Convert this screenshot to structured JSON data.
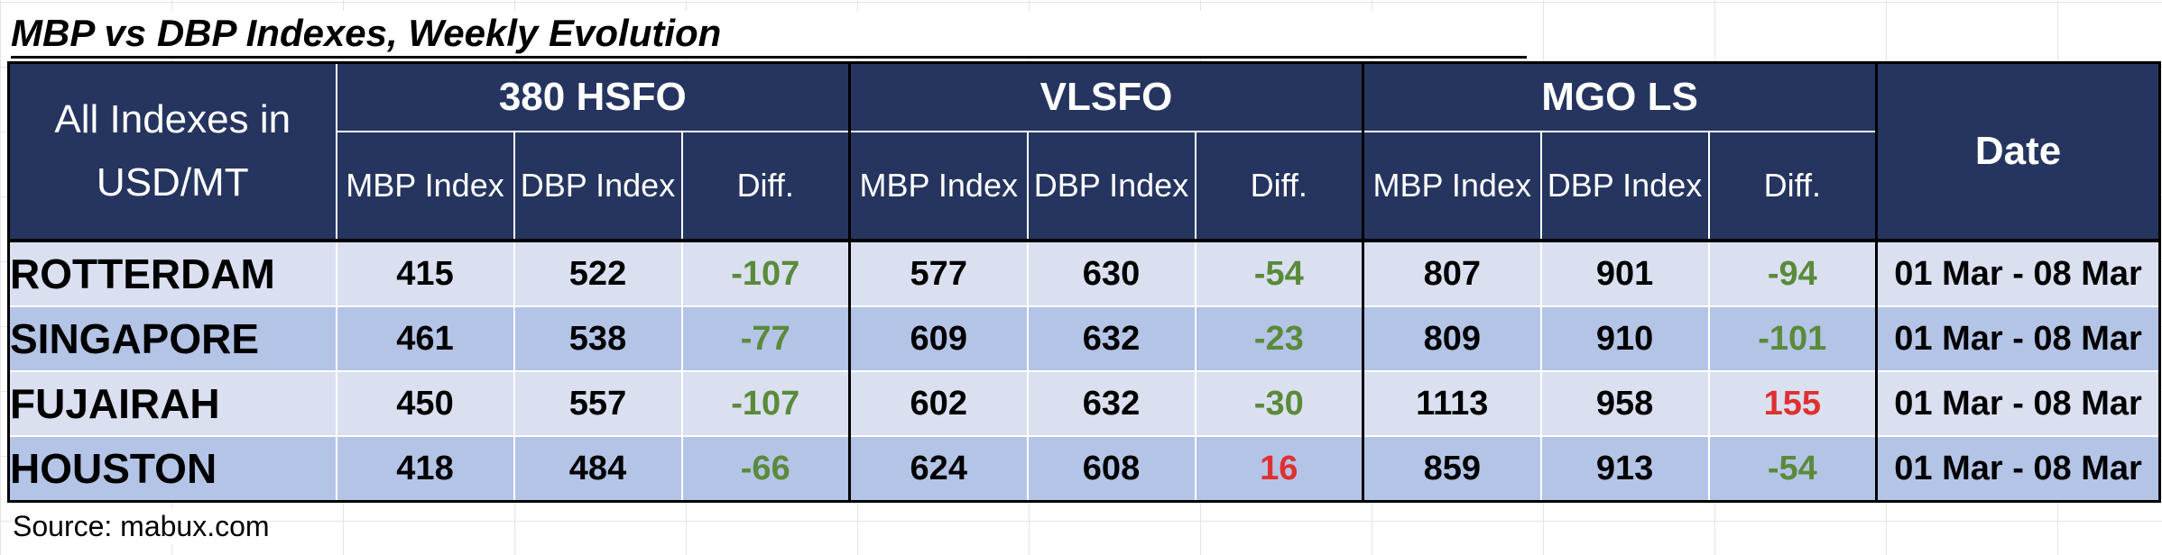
{
  "title": "MBP vs DBP Indexes, Weekly Evolution",
  "corner_label_line1": "All Indexes in",
  "corner_label_line2": "USD/MT",
  "groups": [
    "380 HSFO",
    "VLSFO",
    "MGO LS"
  ],
  "subheaders": [
    "MBP Index",
    "DBP Index",
    "Diff."
  ],
  "date_header": "Date",
  "rows": [
    {
      "port": "ROTTERDAM",
      "hsfo": [
        "415",
        "522",
        "-107"
      ],
      "vlsfo": [
        "577",
        "630",
        "-54"
      ],
      "mgo": [
        "807",
        "901",
        "-94"
      ],
      "date": "01 Mar - 08 Mar"
    },
    {
      "port": "SINGAPORE",
      "hsfo": [
        "461",
        "538",
        "-77"
      ],
      "vlsfo": [
        "609",
        "632",
        "-23"
      ],
      "mgo": [
        "809",
        "910",
        "-101"
      ],
      "date": "01 Mar - 08 Mar"
    },
    {
      "port": "FUJAIRAH",
      "hsfo": [
        "450",
        "557",
        "-107"
      ],
      "vlsfo": [
        "602",
        "632",
        "-30"
      ],
      "mgo": [
        "1113",
        "958",
        "155"
      ],
      "date": "01 Mar - 08 Mar"
    },
    {
      "port": "HOUSTON",
      "hsfo": [
        "418",
        "484",
        "-66"
      ],
      "vlsfo": [
        "624",
        "608",
        "16"
      ],
      "mgo": [
        "859",
        "913",
        "-54"
      ],
      "date": "01 Mar - 08 Mar"
    }
  ],
  "colors": {
    "header_bg": "#25355f",
    "row_light": "#dae0f0",
    "row_dark": "#b4c4e6",
    "diff_negative": "#5a8a3a",
    "diff_positive": "#e03030"
  },
  "source": "Source: mabux.com"
}
